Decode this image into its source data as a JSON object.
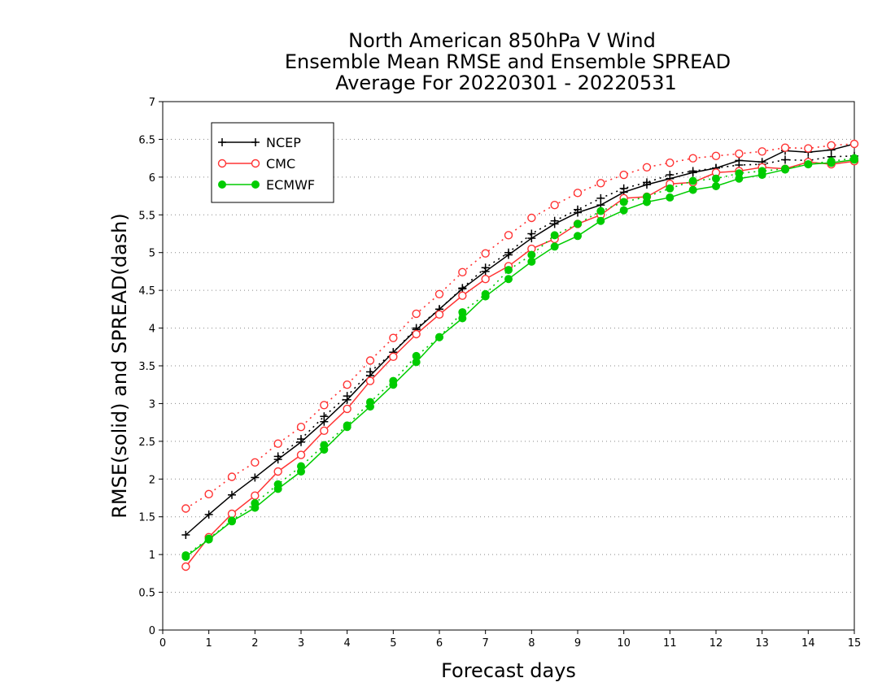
{
  "chart_data": {
    "type": "line",
    "title_lines": [
      "North American 850hPa V Wind",
      "Ensemble Mean RMSE and Ensemble SPREAD",
      "Average For 20220301 - 20220531"
    ],
    "xlabel": "Forecast days",
    "ylabel": "RMSE(solid) and SPREAD(dash)",
    "xlim": [
      0,
      15
    ],
    "ylim": [
      0,
      7
    ],
    "x_ticks": [
      0,
      1,
      2,
      3,
      4,
      5,
      6,
      7,
      8,
      9,
      10,
      11,
      12,
      13,
      14,
      15
    ],
    "y_ticks": [
      0,
      0.5,
      1,
      1.5,
      2,
      2.5,
      3,
      3.5,
      4,
      4.5,
      5,
      5.5,
      6,
      6.5,
      7
    ],
    "grid": "horizontal dotted",
    "legend_position": "top-left",
    "x": [
      0.5,
      1,
      1.5,
      2,
      2.5,
      3,
      3.5,
      4,
      4.5,
      5,
      5.5,
      6,
      6.5,
      7,
      7.5,
      8,
      8.5,
      9,
      9.5,
      10,
      10.5,
      11,
      11.5,
      12,
      12.5,
      13,
      13.5,
      14,
      14.5,
      15
    ],
    "series": [
      {
        "name": "NCEP",
        "color": "#000000",
        "marker": "plus",
        "rmse": [
          1.26,
          1.53,
          1.79,
          2.02,
          2.26,
          2.49,
          2.76,
          3.05,
          3.37,
          3.68,
          3.98,
          4.25,
          4.52,
          4.75,
          4.97,
          5.19,
          5.38,
          5.53,
          5.63,
          5.8,
          5.9,
          5.98,
          6.06,
          6.12,
          6.22,
          6.2,
          6.35,
          6.33,
          6.36,
          6.44
        ],
        "spread": [
          null,
          null,
          null,
          null,
          2.3,
          2.53,
          2.83,
          3.1,
          3.42,
          3.68,
          4.0,
          4.25,
          4.53,
          4.8,
          5.0,
          5.25,
          5.42,
          5.57,
          5.72,
          5.85,
          5.93,
          6.03,
          6.08,
          6.12,
          6.16,
          6.17,
          6.23,
          6.22,
          6.27,
          6.28
        ]
      },
      {
        "name": "CMC",
        "color": "#ff3333",
        "marker": "open-circle",
        "rmse": [
          0.84,
          1.23,
          1.54,
          1.78,
          2.1,
          2.32,
          2.64,
          2.93,
          3.3,
          3.62,
          3.92,
          4.18,
          4.43,
          4.65,
          4.82,
          5.05,
          5.18,
          5.38,
          5.5,
          5.72,
          5.74,
          5.91,
          5.93,
          6.06,
          6.08,
          6.13,
          6.11,
          6.2,
          6.17,
          6.21
        ],
        "spread": [
          1.61,
          1.8,
          2.03,
          2.22,
          2.47,
          2.69,
          2.98,
          3.25,
          3.57,
          3.87,
          4.19,
          4.45,
          4.74,
          4.99,
          5.23,
          5.46,
          5.63,
          5.79,
          5.92,
          6.03,
          6.13,
          6.19,
          6.25,
          6.28,
          6.31,
          6.34,
          6.39,
          6.38,
          6.42,
          6.44
        ]
      },
      {
        "name": "ECMWF",
        "color": "#00cc00",
        "marker": "filled-circle",
        "rmse": [
          0.97,
          1.2,
          1.44,
          1.62,
          1.87,
          2.1,
          2.39,
          2.69,
          2.96,
          3.25,
          3.55,
          3.88,
          4.13,
          4.42,
          4.65,
          4.88,
          5.08,
          5.22,
          5.42,
          5.56,
          5.67,
          5.73,
          5.83,
          5.88,
          5.98,
          6.03,
          6.1,
          6.17,
          6.19,
          6.23
        ],
        "spread": [
          0.99,
          1.21,
          1.45,
          1.68,
          1.93,
          2.17,
          2.45,
          2.71,
          3.02,
          3.3,
          3.63,
          3.88,
          4.21,
          4.45,
          4.77,
          4.97,
          5.23,
          5.38,
          5.55,
          5.67,
          5.74,
          5.85,
          5.95,
          5.98,
          6.05,
          6.08,
          6.11,
          6.17,
          6.21,
          6.25
        ]
      }
    ]
  }
}
